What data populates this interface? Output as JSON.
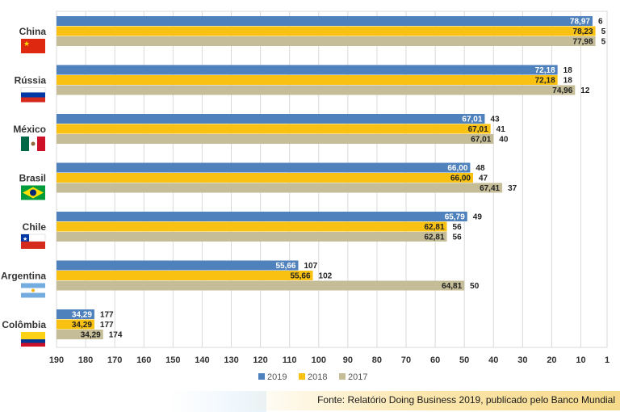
{
  "chart_data": {
    "type": "bar",
    "orientation": "horizontal",
    "xaxis_reversed": true,
    "categories": [
      "China",
      "Rússia",
      "México",
      "Brasil",
      "Chile",
      "Argentina",
      "Colômbia"
    ],
    "series": [
      {
        "name": "2019",
        "color": "#4f81bd",
        "ranks": [
          6,
          18,
          43,
          48,
          49,
          107,
          177
        ],
        "scores": [
          "78,97",
          "72,18",
          "67,01",
          "66,00",
          "65,79",
          "55,66",
          "34,29"
        ]
      },
      {
        "name": "2018",
        "color": "#f9c212",
        "ranks": [
          5,
          18,
          41,
          47,
          56,
          102,
          177
        ],
        "scores": [
          "78,23",
          "72,18",
          "67,01",
          "66,00",
          "62,81",
          "55,66",
          "34,29"
        ]
      },
      {
        "name": "2017",
        "color": "#c4bd97",
        "ranks": [
          5,
          12,
          40,
          37,
          56,
          50,
          174
        ],
        "scores": [
          "77,98",
          "74,96",
          "67,01",
          "67,41",
          "62,81",
          "64,81",
          "34,29"
        ]
      }
    ],
    "xticks": [
      190,
      180,
      170,
      160,
      150,
      140,
      130,
      120,
      110,
      100,
      90,
      80,
      70,
      60,
      50,
      40,
      30,
      20,
      10,
      1
    ],
    "xlim": [
      190,
      1
    ],
    "grid": true,
    "legend_position": "bottom",
    "source": "Fonte: Relatório Doing Business 2019, publicado pelo Banco Mundial"
  },
  "flags": [
    "china-flag",
    "russia-flag",
    "mexico-flag",
    "brazil-flag",
    "chile-flag",
    "argentina-flag",
    "colombia-flag"
  ]
}
